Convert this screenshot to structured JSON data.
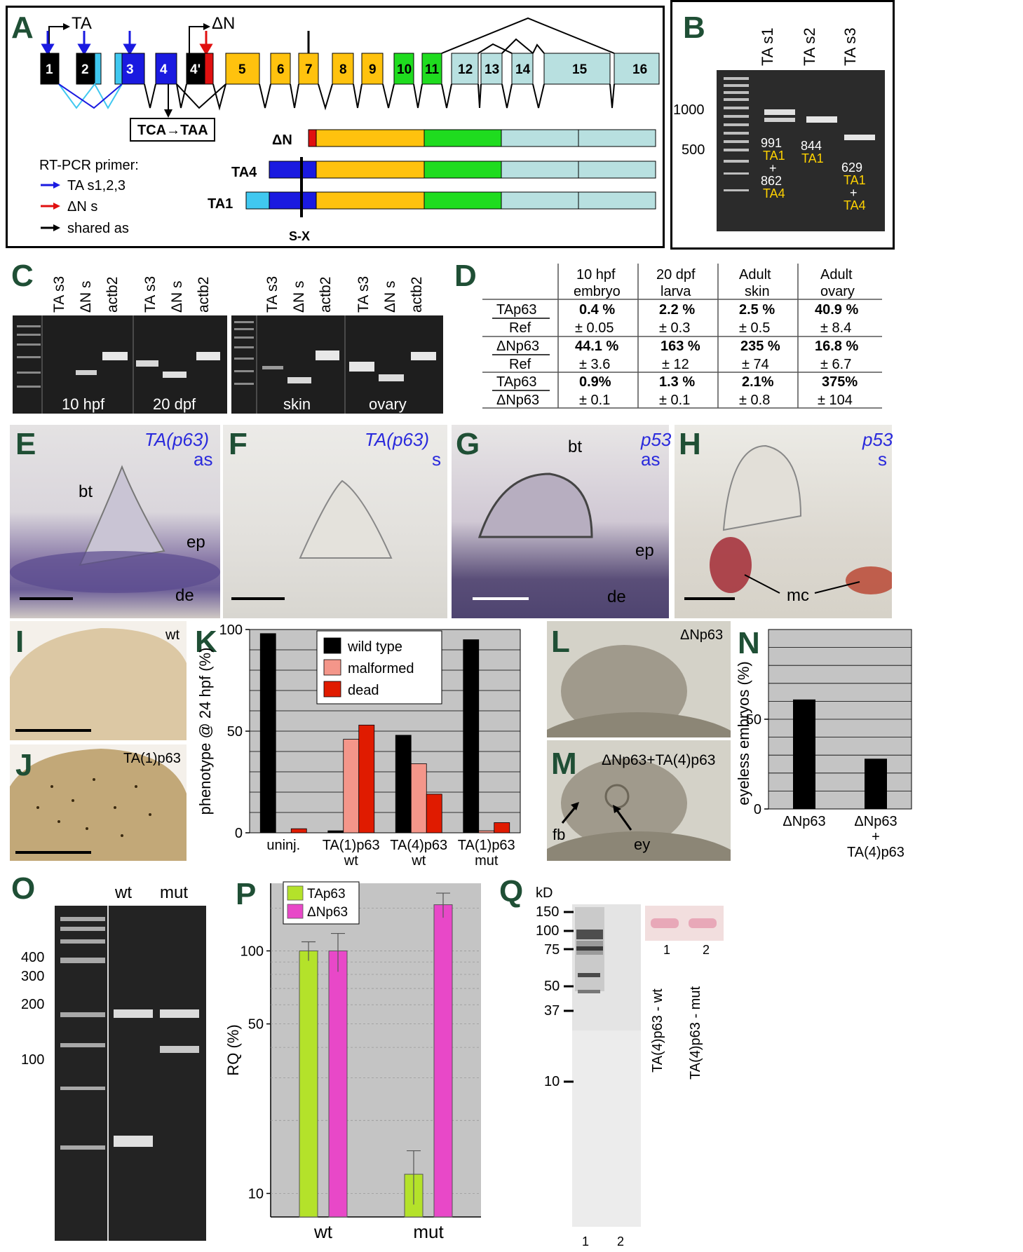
{
  "panels": {
    "A": "A",
    "B": "B",
    "C": "C",
    "D": "D",
    "E": "E",
    "F": "F",
    "G": "G",
    "H": "H",
    "I": "I",
    "J": "J",
    "K": "K",
    "L": "L",
    "M": "M",
    "N": "N",
    "O": "O",
    "P": "P",
    "Q": "Q"
  },
  "panelA": {
    "ta_label": "TA",
    "dn_label": "ΔN",
    "exons": [
      "1",
      "2",
      "3",
      "4",
      "4'",
      "5",
      "6",
      "7",
      "8",
      "9",
      "10",
      "11",
      "12",
      "13",
      "14",
      "15",
      "16"
    ],
    "mutation": "TCA→TAA",
    "isoforms": [
      "ΔN",
      "TA4",
      "TA1"
    ],
    "sx": "S-X",
    "legend_title": "RT-PCR primer:",
    "legend": [
      "TA s1,2,3",
      "ΔN s",
      "shared as"
    ],
    "colors": {
      "blue": "#1a1ae0",
      "red": "#e01010",
      "black": "#000000",
      "orange": "#ffc20e",
      "green": "#1fdc1f",
      "lightblue": "#b8e0e0",
      "cyan": "#40c8f0"
    }
  },
  "panelB": {
    "lanes": [
      "TA s1",
      "TA s2",
      "TA s3"
    ],
    "markers": [
      "1000",
      "500"
    ],
    "lane1": [
      "991",
      "TA1",
      "+",
      "862",
      "TA4"
    ],
    "lane2": [
      "844",
      "TA1"
    ],
    "lane3": [
      "629",
      "TA1",
      "+",
      "TA4"
    ]
  },
  "panelC": {
    "lanes": [
      "TA s3",
      "ΔN s",
      "actb2",
      "TA s3",
      "ΔN s",
      "actb2",
      "TA s3",
      "ΔN s",
      "actb2",
      "TA s3",
      "ΔN s",
      "actb2"
    ],
    "stages": [
      "10 hpf",
      "20 dpf",
      "skin",
      "ovary"
    ]
  },
  "panelD": {
    "columns": [
      [
        "10 hpf",
        "embryo"
      ],
      [
        "20 dpf",
        "larva"
      ],
      [
        "Adult",
        "skin"
      ],
      [
        "Adult",
        "ovary"
      ]
    ],
    "rows": [
      {
        "num": "TAp63",
        "den": "Ref",
        "vals": [
          "0.4 %",
          "2.2 %",
          "2.5 %",
          "40.9 %"
        ],
        "errs": [
          "± 0.05",
          "± 0.3",
          "± 0.5",
          "± 8.4"
        ]
      },
      {
        "num": "ΔNp63",
        "den": "Ref",
        "vals": [
          "44.1 %",
          "163 %",
          "235 %",
          "16.8 %"
        ],
        "errs": [
          "± 3.6",
          "± 12",
          "± 74",
          "± 6.7"
        ]
      },
      {
        "num": "TAp63",
        "den": "ΔNp63",
        "vals": [
          "0.9%",
          "1.3 %",
          "2.1%",
          "375%"
        ],
        "errs": [
          "± 0.1",
          "± 0.1",
          "± 0.8",
          "± 104"
        ]
      }
    ]
  },
  "panelE": {
    "gene": "TA(p63)",
    "probe": "as",
    "bt": "bt",
    "ep": "ep",
    "de": "de"
  },
  "panelF": {
    "gene": "TA(p63)",
    "probe": "s"
  },
  "panelG": {
    "gene": "p53",
    "probe": "as",
    "bt": "bt",
    "ep": "ep",
    "de": "de"
  },
  "panelH": {
    "gene": "p53",
    "probe": "s",
    "mc": "mc"
  },
  "panelI": {
    "label": "wt"
  },
  "panelJ": {
    "label": "TA(1)p63"
  },
  "panelL": {
    "label": "ΔNp63"
  },
  "panelM": {
    "label": "ΔNp63+TA(4)p63",
    "fb": "fb",
    "ey": "ey"
  },
  "panelO": {
    "lanes": [
      "wt",
      "mut"
    ],
    "markers": [
      "400",
      "300",
      "200",
      "100"
    ]
  },
  "panelQ": {
    "unit": "kD",
    "markers": [
      "150",
      "100",
      "75",
      "50",
      "37",
      "10"
    ],
    "lanes": [
      "1",
      "2"
    ],
    "inset_lanes": [
      "1",
      "2"
    ],
    "inset_labels": [
      "TA(4)p63 - wt",
      "TA(4)p63 - mut"
    ]
  },
  "chart_data": [
    {
      "type": "bar",
      "panel": "K",
      "ylabel": "phenotype @ 24 hpf (%)",
      "categories": [
        [
          "uninj."
        ],
        [
          "TA(1)p63",
          "wt"
        ],
        [
          "TA(4)p63",
          "wt"
        ],
        [
          "TA(1)p63",
          "mut"
        ]
      ],
      "series": [
        {
          "name": "wild type",
          "color": "#000000",
          "values": [
            98,
            1,
            48,
            95
          ]
        },
        {
          "name": "malformed",
          "color": "#f4968a",
          "values": [
            0,
            46,
            34,
            1
          ]
        },
        {
          "name": "dead",
          "color": "#e01b00",
          "values": [
            2,
            53,
            19,
            5
          ]
        }
      ],
      "ylim": [
        0,
        100
      ],
      "yticks": [
        0,
        50,
        100
      ],
      "grid": true,
      "legend": "top-center"
    },
    {
      "type": "bar",
      "panel": "N",
      "ylabel": "eyeless embryos (%)",
      "categories": [
        [
          "ΔNp63"
        ],
        [
          "ΔNp63",
          "+",
          "TA(4)p63"
        ]
      ],
      "values": [
        61,
        28
      ],
      "ylim": [
        0,
        100
      ],
      "yticks": [
        0,
        50
      ],
      "grid": true
    },
    {
      "type": "bar",
      "panel": "P",
      "ylabel": "RQ (%)",
      "categories": [
        "wt",
        "mut"
      ],
      "series": [
        {
          "name": "TAp63",
          "color": "#b4e22a",
          "values": [
            100,
            12
          ],
          "errors": [
            9,
            3
          ]
        },
        {
          "name": "ΔNp63",
          "color": "#e848c8",
          "values": [
            100,
            155
          ],
          "errors": [
            18,
            18
          ]
        }
      ],
      "yscale": "log",
      "ylim": [
        8,
        190
      ],
      "yticks": [
        10,
        50,
        100
      ],
      "grid": true,
      "legend": "top-left"
    }
  ]
}
